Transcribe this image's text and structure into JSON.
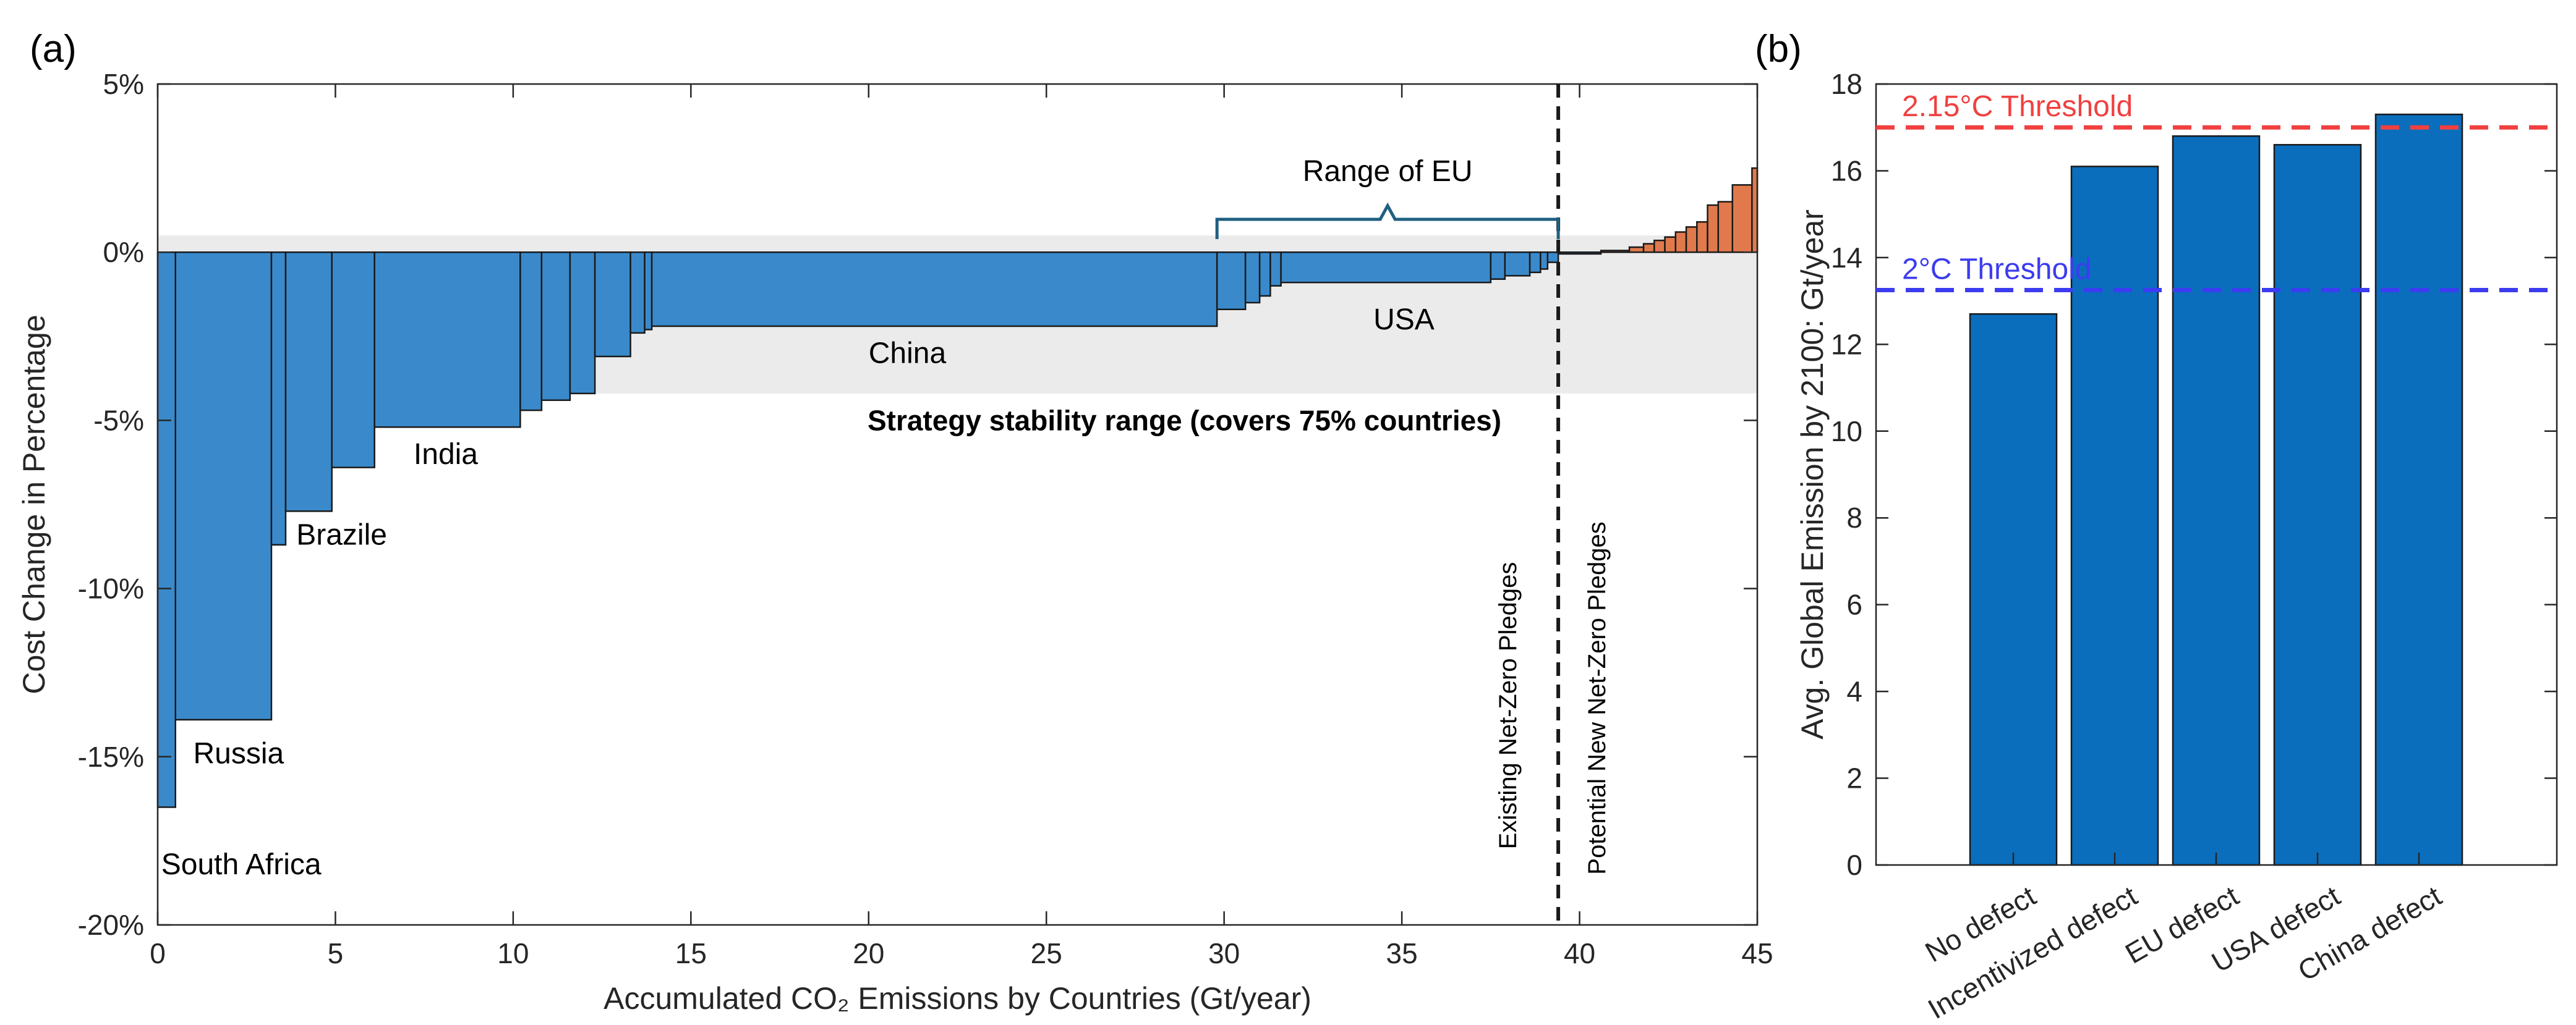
{
  "colors": {
    "blue_bar": "#3A8ACB",
    "orange_bar": "#E07A4C",
    "stability_band": "#EBEBEB",
    "bar_b": "#0A6EBD",
    "red_threshold": "#F04040",
    "blue_threshold": "#3C3CF0",
    "bracket": "#1F5F80"
  },
  "chart_data": [
    {
      "type": "bar",
      "panel_label": "(a)",
      "xlabel": "Accumulated CO₂ Emissions by Countries (Gt/year)",
      "ylabel": "Cost Change in Percentage",
      "xlim": [
        0,
        45
      ],
      "ylim": [
        -20,
        5
      ],
      "xticks": [
        0,
        5,
        10,
        15,
        20,
        25,
        30,
        35,
        40,
        45
      ],
      "yticks": [
        5,
        0,
        -5,
        -10,
        -15,
        -20
      ],
      "ytick_labels": [
        "5%",
        "0%",
        "-5%",
        "-10%",
        "-15%",
        "-20%"
      ],
      "stability_band": {
        "ymin": -4.2,
        "ymax": 0.5,
        "label": "Strategy stability range (covers 75% countries)"
      },
      "divider_x": 39.4,
      "divider_labels": [
        "Existing Net-Zero Pledges",
        "Potential New Net-Zero Pledges"
      ],
      "bracket": {
        "x_start": 29.8,
        "x_end": 39.4,
        "label": "Range of EU"
      },
      "bars": [
        {
          "x0": 0.0,
          "x1": 0.5,
          "value": -16.5,
          "label": "South Africa"
        },
        {
          "x0": 0.5,
          "x1": 3.2,
          "value": -13.9,
          "label": "Russia"
        },
        {
          "x0": 3.2,
          "x1": 3.6,
          "value": -8.7
        },
        {
          "x0": 3.6,
          "x1": 4.9,
          "value": -7.7,
          "label": "Brazile"
        },
        {
          "x0": 4.9,
          "x1": 6.1,
          "value": -6.4
        },
        {
          "x0": 6.1,
          "x1": 10.2,
          "value": -5.2,
          "label": "India"
        },
        {
          "x0": 10.2,
          "x1": 10.8,
          "value": -4.7
        },
        {
          "x0": 10.8,
          "x1": 11.6,
          "value": -4.4
        },
        {
          "x0": 11.6,
          "x1": 12.3,
          "value": -4.2
        },
        {
          "x0": 12.3,
          "x1": 13.3,
          "value": -3.1
        },
        {
          "x0": 13.3,
          "x1": 13.7,
          "value": -2.4
        },
        {
          "x0": 13.7,
          "x1": 13.9,
          "value": -2.3
        },
        {
          "x0": 13.9,
          "x1": 29.8,
          "value": -2.2,
          "label": "China"
        },
        {
          "x0": 29.8,
          "x1": 30.6,
          "value": -1.7
        },
        {
          "x0": 30.6,
          "x1": 31.0,
          "value": -1.5
        },
        {
          "x0": 31.0,
          "x1": 31.3,
          "value": -1.3
        },
        {
          "x0": 31.3,
          "x1": 31.6,
          "value": -1.0
        },
        {
          "x0": 31.6,
          "x1": 37.5,
          "value": -0.9,
          "label": "USA"
        },
        {
          "x0": 37.5,
          "x1": 37.9,
          "value": -0.8
        },
        {
          "x0": 37.9,
          "x1": 38.6,
          "value": -0.7
        },
        {
          "x0": 38.6,
          "x1": 38.9,
          "value": -0.6
        },
        {
          "x0": 38.9,
          "x1": 39.1,
          "value": -0.5
        },
        {
          "x0": 39.1,
          "x1": 39.4,
          "value": -0.3
        },
        {
          "x0": 39.4,
          "x1": 40.6,
          "value": -0.05
        },
        {
          "x0": 40.6,
          "x1": 41.4,
          "value": 0.05
        },
        {
          "x0": 41.4,
          "x1": 41.8,
          "value": 0.15
        },
        {
          "x0": 41.8,
          "x1": 42.1,
          "value": 0.25
        },
        {
          "x0": 42.1,
          "x1": 42.4,
          "value": 0.35
        },
        {
          "x0": 42.4,
          "x1": 42.7,
          "value": 0.45
        },
        {
          "x0": 42.7,
          "x1": 43.0,
          "value": 0.6
        },
        {
          "x0": 43.0,
          "x1": 43.3,
          "value": 0.75
        },
        {
          "x0": 43.3,
          "x1": 43.6,
          "value": 0.9
        },
        {
          "x0": 43.6,
          "x1": 43.9,
          "value": 1.4
        },
        {
          "x0": 43.9,
          "x1": 44.3,
          "value": 1.5
        },
        {
          "x0": 44.3,
          "x1": 44.85,
          "value": 2.0
        },
        {
          "x0": 44.85,
          "x1": 45.0,
          "value": 2.5
        }
      ]
    },
    {
      "type": "bar",
      "panel_label": "(b)",
      "xlabel": "",
      "ylabel": "Avg. Global Emission by 2100: Gt/year",
      "ylim": [
        0,
        18
      ],
      "yticks": [
        0,
        2,
        4,
        6,
        8,
        10,
        12,
        14,
        16,
        18
      ],
      "categories": [
        "No defect",
        "Incentivized defect",
        "EU defect",
        "USA defect",
        "China defect"
      ],
      "values": [
        12.7,
        16.1,
        16.8,
        16.6,
        17.3
      ],
      "thresholds": [
        {
          "label": "2.15°C Threshold",
          "value": 17.0
        },
        {
          "label": "2°C Threshold",
          "value": 13.25
        }
      ]
    }
  ]
}
